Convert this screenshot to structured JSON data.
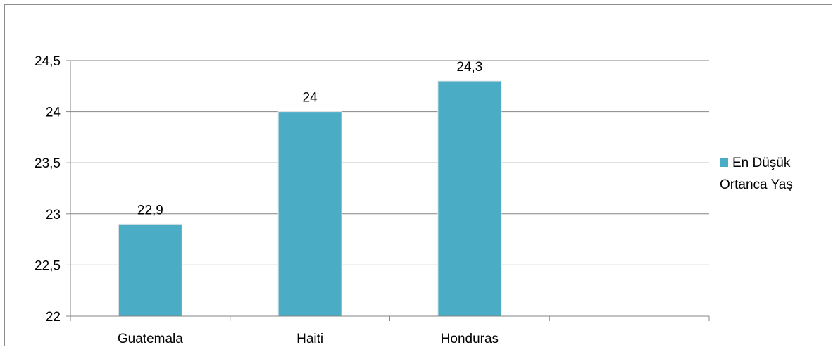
{
  "chart_data": {
    "type": "bar",
    "categories": [
      "Guatemala",
      "Haiti",
      "Honduras"
    ],
    "series": [
      {
        "name": "En Düşük Ortanca Yaş",
        "values": [
          22.9,
          24,
          24.3
        ],
        "data_labels": [
          "22,9",
          "24",
          "24,3"
        ],
        "color": "#4bacc6"
      }
    ],
    "ylim": [
      22,
      24.5
    ],
    "yticks": [
      22,
      22.5,
      23,
      23.5,
      24,
      24.5
    ],
    "ytick_labels": [
      "22",
      "22,5",
      "23",
      "23,5",
      "24",
      "24,5"
    ],
    "grid": true,
    "legend": {
      "placement": "right",
      "lines": [
        "En Düşük",
        "Ortanca Yaş"
      ]
    },
    "colors": {
      "bar": "#4bacc6",
      "grid": "#868686",
      "frame": "#8c8c8c"
    }
  }
}
